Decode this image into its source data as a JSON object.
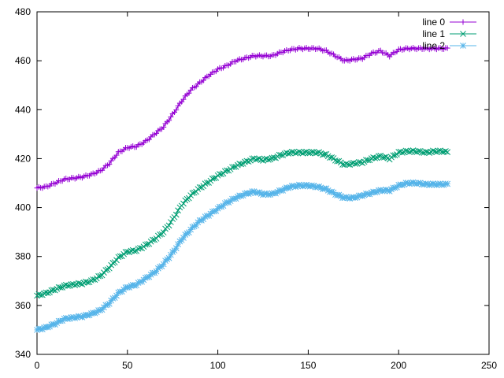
{
  "chart_data": {
    "type": "line",
    "title": "",
    "xlabel": "",
    "ylabel": "",
    "xlim": [
      0,
      250
    ],
    "ylim": [
      340,
      480
    ],
    "xticks": [
      0,
      50,
      100,
      150,
      200,
      250
    ],
    "yticks": [
      340,
      360,
      380,
      400,
      420,
      440,
      460,
      480
    ],
    "grid": false,
    "legend_position": "top-right",
    "series": [
      {
        "name": "line 0",
        "color": "#9400d3",
        "marker": "plus",
        "knots": [
          [
            0,
            408
          ],
          [
            5,
            408.5
          ],
          [
            10,
            410
          ],
          [
            15,
            411.5
          ],
          [
            20,
            412
          ],
          [
            25,
            412.5
          ],
          [
            30,
            413.5
          ],
          [
            35,
            415
          ],
          [
            40,
            418
          ],
          [
            45,
            422.5
          ],
          [
            50,
            424.5
          ],
          [
            55,
            425
          ],
          [
            60,
            427
          ],
          [
            65,
            430
          ],
          [
            70,
            433
          ],
          [
            75,
            438
          ],
          [
            80,
            443.5
          ],
          [
            85,
            448
          ],
          [
            90,
            451
          ],
          [
            95,
            454
          ],
          [
            100,
            456.5
          ],
          [
            105,
            458
          ],
          [
            110,
            460
          ],
          [
            115,
            461
          ],
          [
            120,
            462
          ],
          [
            125,
            462
          ],
          [
            130,
            462
          ],
          [
            135,
            463.5
          ],
          [
            140,
            464.5
          ],
          [
            145,
            465
          ],
          [
            150,
            465
          ],
          [
            155,
            465
          ],
          [
            160,
            464
          ],
          [
            165,
            462
          ],
          [
            170,
            460
          ],
          [
            175,
            460.5
          ],
          [
            180,
            461
          ],
          [
            185,
            463
          ],
          [
            190,
            464
          ],
          [
            195,
            462
          ],
          [
            200,
            464.5
          ],
          [
            205,
            465
          ],
          [
            210,
            465
          ],
          [
            215,
            465
          ],
          [
            220,
            465
          ],
          [
            225,
            465
          ],
          [
            227,
            465
          ]
        ]
      },
      {
        "name": "line 1",
        "color": "#009e73",
        "marker": "cross",
        "knots": [
          [
            0,
            364
          ],
          [
            5,
            365
          ],
          [
            10,
            366.5
          ],
          [
            15,
            368
          ],
          [
            20,
            368.5
          ],
          [
            25,
            369
          ],
          [
            30,
            370
          ],
          [
            35,
            372
          ],
          [
            40,
            375.5
          ],
          [
            45,
            379.5
          ],
          [
            50,
            382
          ],
          [
            55,
            382.5
          ],
          [
            60,
            384.5
          ],
          [
            65,
            387
          ],
          [
            70,
            390
          ],
          [
            75,
            395
          ],
          [
            80,
            401
          ],
          [
            85,
            405
          ],
          [
            90,
            408
          ],
          [
            95,
            410.5
          ],
          [
            100,
            413
          ],
          [
            105,
            415
          ],
          [
            110,
            417
          ],
          [
            115,
            418.5
          ],
          [
            120,
            420
          ],
          [
            125,
            419.5
          ],
          [
            130,
            420
          ],
          [
            135,
            421.5
          ],
          [
            140,
            422.5
          ],
          [
            145,
            422.5
          ],
          [
            150,
            422.5
          ],
          [
            155,
            422.5
          ],
          [
            160,
            421.5
          ],
          [
            165,
            419.5
          ],
          [
            170,
            417.5
          ],
          [
            175,
            418
          ],
          [
            180,
            418.5
          ],
          [
            185,
            420
          ],
          [
            190,
            421
          ],
          [
            195,
            420
          ],
          [
            200,
            422.5
          ],
          [
            205,
            423
          ],
          [
            210,
            423
          ],
          [
            215,
            422.5
          ],
          [
            220,
            423
          ],
          [
            225,
            423
          ],
          [
            227,
            422.5
          ]
        ]
      },
      {
        "name": "line 2",
        "color": "#56b4e9",
        "marker": "star",
        "knots": [
          [
            0,
            350
          ],
          [
            5,
            351
          ],
          [
            10,
            352.5
          ],
          [
            15,
            354.5
          ],
          [
            20,
            355
          ],
          [
            25,
            355.5
          ],
          [
            30,
            356.5
          ],
          [
            35,
            358
          ],
          [
            40,
            361
          ],
          [
            45,
            365
          ],
          [
            50,
            367.5
          ],
          [
            55,
            368.5
          ],
          [
            60,
            371
          ],
          [
            65,
            373.5
          ],
          [
            70,
            377
          ],
          [
            75,
            381.5
          ],
          [
            80,
            387
          ],
          [
            85,
            391
          ],
          [
            90,
            394.5
          ],
          [
            95,
            397
          ],
          [
            100,
            399.5
          ],
          [
            105,
            402
          ],
          [
            110,
            404
          ],
          [
            115,
            405.5
          ],
          [
            120,
            406.5
          ],
          [
            125,
            405.5
          ],
          [
            130,
            405.5
          ],
          [
            135,
            407
          ],
          [
            140,
            408.5
          ],
          [
            145,
            409
          ],
          [
            150,
            409
          ],
          [
            155,
            408.5
          ],
          [
            160,
            407.5
          ],
          [
            165,
            405.5
          ],
          [
            170,
            404
          ],
          [
            175,
            404
          ],
          [
            180,
            405
          ],
          [
            185,
            406
          ],
          [
            190,
            407
          ],
          [
            195,
            407
          ],
          [
            200,
            409
          ],
          [
            205,
            410
          ],
          [
            210,
            410
          ],
          [
            215,
            409.5
          ],
          [
            220,
            409.5
          ],
          [
            225,
            409.5
          ],
          [
            227,
            409.5
          ]
        ]
      }
    ]
  }
}
